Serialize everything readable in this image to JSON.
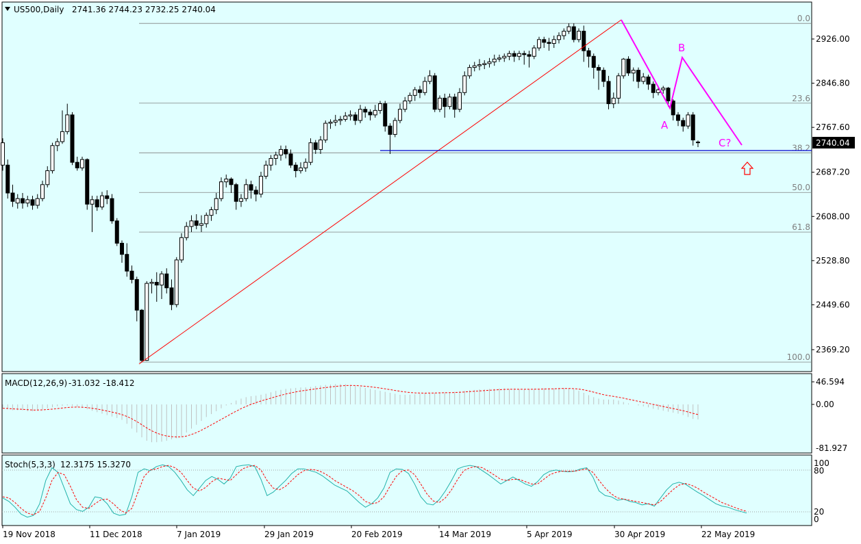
{
  "colors": {
    "background": "#e0ffff",
    "frame": "#000000",
    "candle_up": "#ffffff",
    "candle_down": "#000000",
    "trend_line": "#ff0000",
    "wave_line": "#ff00ff",
    "support_line": "#0000cd",
    "fib_line": "#808080",
    "macd_hist": "#c0c0c0",
    "macd_signal": "#ff0000",
    "stoch_main": "#20b2aa",
    "stoch_signal": "#ff0000",
    "arrow": "#ff0000"
  },
  "header": {
    "symbol": "US500,Daily",
    "ohlc": "2741.36 2744.23 2732.25 2740.04"
  },
  "price_badge": "2740.04",
  "price_axis": [
    "2926.00",
    "2846.80",
    "2767.60",
    "2687.20",
    "2608.00",
    "2528.80",
    "2449.60",
    "2369.20"
  ],
  "fib_levels": [
    {
      "label": "0.0",
      "price": 2954
    },
    {
      "label": "23.6",
      "price": 2811
    },
    {
      "label": "38.2",
      "price": 2722
    },
    {
      "label": "50.0",
      "price": 2651
    },
    {
      "label": "61.8",
      "price": 2580
    },
    {
      "label": "100.0",
      "price": 2347
    }
  ],
  "wave_labels": [
    "A",
    "B",
    "C?"
  ],
  "macd": {
    "title": "MACD(12,26,9)",
    "values": "-31.032 -18.412",
    "axis": [
      "46.594",
      "0.00",
      "-81.927"
    ]
  },
  "stoch": {
    "title": "Stoch(5,3,3)",
    "values": "12.3175 15.3270",
    "axis": [
      "100",
      "80",
      "20",
      "0"
    ]
  },
  "time_axis": [
    "19 Nov 2018",
    "11 Dec 2018",
    "7 Jan 2019",
    "29 Jan 2019",
    "20 Feb 2019",
    "14 Mar 2019",
    "5 Apr 2019",
    "30 Apr 2019",
    "22 May 2019"
  ],
  "chart_data": {
    "type": "candlestick",
    "symbol": "US500",
    "timeframe": "Daily",
    "ylim": [
      2340,
      2965
    ],
    "candles": [
      [
        2700,
        2740,
        2690,
        2748
      ],
      [
        2700,
        2650,
        2640,
        2710
      ],
      [
        2650,
        2635,
        2625,
        2665
      ],
      [
        2632,
        2640,
        2622,
        2648
      ],
      [
        2640,
        2632,
        2622,
        2650
      ],
      [
        2632,
        2638,
        2625,
        2645
      ],
      [
        2638,
        2628,
        2620,
        2645
      ],
      [
        2628,
        2640,
        2622,
        2648
      ],
      [
        2640,
        2665,
        2635,
        2672
      ],
      [
        2665,
        2690,
        2660,
        2698
      ],
      [
        2690,
        2735,
        2685,
        2740
      ],
      [
        2735,
        2742,
        2725,
        2748
      ],
      [
        2742,
        2760,
        2738,
        2798
      ],
      [
        2760,
        2790,
        2755,
        2810
      ],
      [
        2790,
        2705,
        2700,
        2795
      ],
      [
        2705,
        2695,
        2690,
        2715
      ],
      [
        2695,
        2710,
        2690,
        2715
      ],
      [
        2710,
        2630,
        2620,
        2712
      ],
      [
        2630,
        2638,
        2580,
        2645
      ],
      [
        2638,
        2625,
        2618,
        2645
      ],
      [
        2625,
        2645,
        2620,
        2652
      ],
      [
        2645,
        2640,
        2630,
        2655
      ],
      [
        2640,
        2600,
        2595,
        2648
      ],
      [
        2600,
        2560,
        2555,
        2605
      ],
      [
        2560,
        2540,
        2525,
        2565
      ],
      [
        2540,
        2510,
        2500,
        2560
      ],
      [
        2510,
        2495,
        2488,
        2520
      ],
      [
        2495,
        2440,
        2420,
        2500
      ],
      [
        2440,
        2350,
        2347,
        2442
      ],
      [
        2350,
        2488,
        2349,
        2492
      ],
      [
        2488,
        2490,
        2470,
        2496
      ],
      [
        2490,
        2485,
        2455,
        2508
      ],
      [
        2485,
        2505,
        2460,
        2510
      ],
      [
        2505,
        2480,
        2470,
        2515
      ],
      [
        2480,
        2450,
        2440,
        2495
      ],
      [
        2450,
        2530,
        2445,
        2535
      ],
      [
        2530,
        2570,
        2525,
        2578
      ],
      [
        2570,
        2590,
        2565,
        2598
      ],
      [
        2590,
        2600,
        2580,
        2610
      ],
      [
        2600,
        2592,
        2585,
        2612
      ],
      [
        2592,
        2595,
        2580,
        2610
      ],
      [
        2595,
        2610,
        2588,
        2615
      ],
      [
        2610,
        2620,
        2600,
        2625
      ],
      [
        2620,
        2640,
        2612,
        2650
      ],
      [
        2640,
        2670,
        2635,
        2678
      ],
      [
        2670,
        2675,
        2660,
        2683
      ],
      [
        2675,
        2665,
        2650,
        2678
      ],
      [
        2665,
        2635,
        2620,
        2668
      ],
      [
        2635,
        2640,
        2625,
        2648
      ],
      [
        2640,
        2665,
        2635,
        2675
      ],
      [
        2665,
        2655,
        2640,
        2672
      ],
      [
        2655,
        2648,
        2635,
        2662
      ],
      [
        2648,
        2680,
        2642,
        2688
      ],
      [
        2680,
        2700,
        2675,
        2708
      ],
      [
        2700,
        2712,
        2690,
        2718
      ],
      [
        2712,
        2718,
        2700,
        2724
      ],
      [
        2718,
        2728,
        2708,
        2735
      ],
      [
        2728,
        2720,
        2712,
        2735
      ],
      [
        2720,
        2700,
        2695,
        2728
      ],
      [
        2700,
        2690,
        2678,
        2705
      ],
      [
        2690,
        2695,
        2685,
        2705
      ],
      [
        2695,
        2705,
        2688,
        2712
      ],
      [
        2705,
        2740,
        2700,
        2748
      ],
      [
        2740,
        2728,
        2720,
        2745
      ],
      [
        2728,
        2745,
        2720,
        2752
      ],
      [
        2745,
        2775,
        2740,
        2780
      ],
      [
        2775,
        2777,
        2765,
        2782
      ],
      [
        2777,
        2780,
        2770,
        2790
      ],
      [
        2780,
        2782,
        2772,
        2788
      ],
      [
        2782,
        2788,
        2778,
        2795
      ],
      [
        2788,
        2790,
        2780,
        2798
      ],
      [
        2790,
        2780,
        2772,
        2795
      ],
      [
        2780,
        2800,
        2775,
        2808
      ],
      [
        2800,
        2795,
        2785,
        2805
      ],
      [
        2795,
        2790,
        2780,
        2800
      ],
      [
        2790,
        2798,
        2785,
        2808
      ],
      [
        2798,
        2810,
        2792,
        2815
      ],
      [
        2810,
        2770,
        2760,
        2815
      ],
      [
        2770,
        2755,
        2720,
        2775
      ],
      [
        2755,
        2780,
        2750,
        2785
      ],
      [
        2780,
        2800,
        2775,
        2810
      ],
      [
        2800,
        2815,
        2795,
        2822
      ],
      [
        2815,
        2825,
        2810,
        2830
      ],
      [
        2825,
        2835,
        2815,
        2840
      ],
      [
        2835,
        2830,
        2820,
        2842
      ],
      [
        2830,
        2850,
        2825,
        2858
      ],
      [
        2850,
        2860,
        2845,
        2870
      ],
      [
        2860,
        2800,
        2795,
        2865
      ],
      [
        2800,
        2820,
        2795,
        2825
      ],
      [
        2820,
        2805,
        2785,
        2828
      ],
      [
        2805,
        2822,
        2800,
        2828
      ],
      [
        2822,
        2800,
        2785,
        2828
      ],
      [
        2800,
        2830,
        2795,
        2838
      ],
      [
        2830,
        2860,
        2825,
        2868
      ],
      [
        2860,
        2875,
        2855,
        2880
      ],
      [
        2875,
        2878,
        2868,
        2885
      ],
      [
        2878,
        2880,
        2870,
        2890
      ],
      [
        2880,
        2882,
        2872,
        2888
      ],
      [
        2882,
        2885,
        2875,
        2892
      ],
      [
        2885,
        2890,
        2878,
        2898
      ],
      [
        2890,
        2892,
        2885,
        2898
      ],
      [
        2892,
        2895,
        2885,
        2900
      ],
      [
        2895,
        2900,
        2888,
        2905
      ],
      [
        2900,
        2895,
        2885,
        2905
      ],
      [
        2895,
        2900,
        2888,
        2905
      ],
      [
        2900,
        2898,
        2880,
        2905
      ],
      [
        2898,
        2895,
        2875,
        2905
      ],
      [
        2895,
        2910,
        2890,
        2915
      ],
      [
        2910,
        2925,
        2905,
        2930
      ],
      [
        2925,
        2920,
        2910,
        2930
      ],
      [
        2920,
        2918,
        2905,
        2928
      ],
      [
        2918,
        2925,
        2910,
        2932
      ],
      [
        2925,
        2932,
        2918,
        2938
      ],
      [
        2932,
        2940,
        2925,
        2945
      ],
      [
        2940,
        2948,
        2935,
        2954
      ],
      [
        2948,
        2925,
        2920,
        2954
      ],
      [
        2925,
        2940,
        2920,
        2945
      ],
      [
        2940,
        2905,
        2885,
        2950
      ],
      [
        2905,
        2895,
        2875,
        2910
      ],
      [
        2895,
        2875,
        2855,
        2900
      ],
      [
        2875,
        2870,
        2835,
        2880
      ],
      [
        2870,
        2850,
        2840,
        2875
      ],
      [
        2850,
        2810,
        2800,
        2860
      ],
      [
        2810,
        2820,
        2802,
        2830
      ],
      [
        2820,
        2860,
        2810,
        2865
      ],
      [
        2860,
        2890,
        2855,
        2892
      ],
      [
        2890,
        2865,
        2860,
        2895
      ],
      [
        2865,
        2870,
        2850,
        2875
      ],
      [
        2870,
        2850,
        2838,
        2875
      ],
      [
        2850,
        2858,
        2845,
        2865
      ],
      [
        2858,
        2845,
        2835,
        2862
      ],
      [
        2845,
        2830,
        2820,
        2850
      ],
      [
        2830,
        2835,
        2825,
        2842
      ],
      [
        2835,
        2838,
        2828,
        2842
      ],
      [
        2838,
        2815,
        2805,
        2840
      ],
      [
        2815,
        2790,
        2780,
        2818
      ],
      [
        2790,
        2780,
        2770,
        2795
      ],
      [
        2780,
        2770,
        2760,
        2785
      ],
      [
        2770,
        2790,
        2765,
        2795
      ],
      [
        2790,
        2745,
        2735,
        2795
      ],
      [
        2741.36,
        2740.04,
        2732.25,
        2744.23
      ]
    ],
    "macd_histogram": [
      -8,
      -10,
      -12,
      -12,
      -12,
      -14,
      -14,
      -12,
      -10,
      -8,
      -6,
      -4,
      -3,
      -2,
      -3,
      -5,
      -7,
      -10,
      -13,
      -16,
      -19,
      -22,
      -25,
      -28,
      -32,
      -40,
      -50,
      -58,
      -68,
      -75,
      -78,
      -78,
      -77,
      -75,
      -72,
      -70,
      -66,
      -58,
      -50,
      -42,
      -34,
      -26,
      -20,
      -14,
      -8,
      -2,
      3,
      8,
      12,
      15,
      17,
      18,
      20,
      22,
      25,
      28,
      30,
      32,
      33,
      34,
      35,
      35,
      36,
      38,
      39,
      40,
      41,
      42,
      42,
      42,
      40,
      38,
      36,
      34,
      32,
      30,
      28,
      26,
      24,
      22,
      20,
      20,
      20,
      21,
      22,
      23,
      24,
      24,
      25,
      25,
      25,
      26,
      27,
      28,
      29,
      30,
      31,
      31,
      32,
      32,
      33,
      33,
      32,
      32,
      31,
      31,
      31,
      32,
      32,
      33,
      33,
      33,
      34,
      34,
      33,
      31,
      28,
      24,
      19,
      15,
      12,
      10,
      10,
      10,
      8,
      5,
      2,
      0,
      -2,
      -4,
      -6,
      -9,
      -11,
      -13,
      -15,
      -17,
      -19,
      -22,
      -26,
      -30,
      -31
    ],
    "stochastic_main": [
      38,
      32,
      22,
      10,
      5,
      8,
      28,
      68,
      90,
      82,
      55,
      28,
      18,
      15,
      22,
      40,
      38,
      28,
      12,
      8,
      10,
      40,
      82,
      88,
      85,
      92,
      95,
      92,
      82,
      68,
      52,
      42,
      55,
      68,
      75,
      70,
      62,
      72,
      92,
      94,
      95,
      92,
      70,
      42,
      48,
      58,
      68,
      80,
      88,
      88,
      85,
      82,
      76,
      68,
      60,
      55,
      50,
      40,
      30,
      22,
      28,
      38,
      55,
      82,
      88,
      87,
      80,
      62,
      40,
      28,
      26,
      35,
      50,
      68,
      88,
      92,
      94,
      92,
      85,
      78,
      70,
      62,
      68,
      74,
      68,
      62,
      58,
      66,
      78,
      84,
      86,
      84,
      83,
      84,
      88,
      90,
      74,
      50,
      42,
      40,
      34,
      36,
      32,
      30,
      26,
      28,
      24,
      38,
      52,
      62,
      65,
      62,
      55,
      48,
      42,
      35,
      28,
      24,
      22,
      18,
      15,
      12
    ],
    "stochastic_signal": [
      40,
      38,
      30,
      20,
      12,
      9,
      15,
      38,
      68,
      82,
      78,
      58,
      35,
      22,
      20,
      28,
      35,
      36,
      28,
      18,
      12,
      20,
      48,
      75,
      86,
      88,
      92,
      94,
      90,
      82,
      68,
      55,
      50,
      56,
      66,
      72,
      70,
      68,
      78,
      88,
      92,
      94,
      86,
      68,
      55,
      52,
      58,
      68,
      78,
      85,
      87,
      86,
      82,
      76,
      68,
      62,
      56,
      50,
      42,
      32,
      28,
      30,
      40,
      58,
      75,
      85,
      86,
      78,
      62,
      45,
      33,
      30,
      38,
      52,
      70,
      85,
      90,
      92,
      90,
      84,
      77,
      70,
      68,
      70,
      70,
      66,
      62,
      62,
      70,
      78,
      82,
      84,
      84,
      84,
      86,
      88,
      82,
      68,
      55,
      45,
      38,
      36,
      34,
      32,
      30,
      28,
      26,
      32,
      42,
      52,
      60,
      63,
      60,
      55,
      48,
      42,
      36,
      30,
      26,
      22,
      18,
      15
    ],
    "wave_lines": [
      {
        "name": "A",
        "from": "30 Apr 2019",
        "path": [
          2954,
          2800
        ]
      },
      {
        "name": "B",
        "path": [
          2800,
          2890
        ]
      },
      {
        "name": "C?",
        "path": [
          2890,
          2732
        ]
      }
    ]
  }
}
